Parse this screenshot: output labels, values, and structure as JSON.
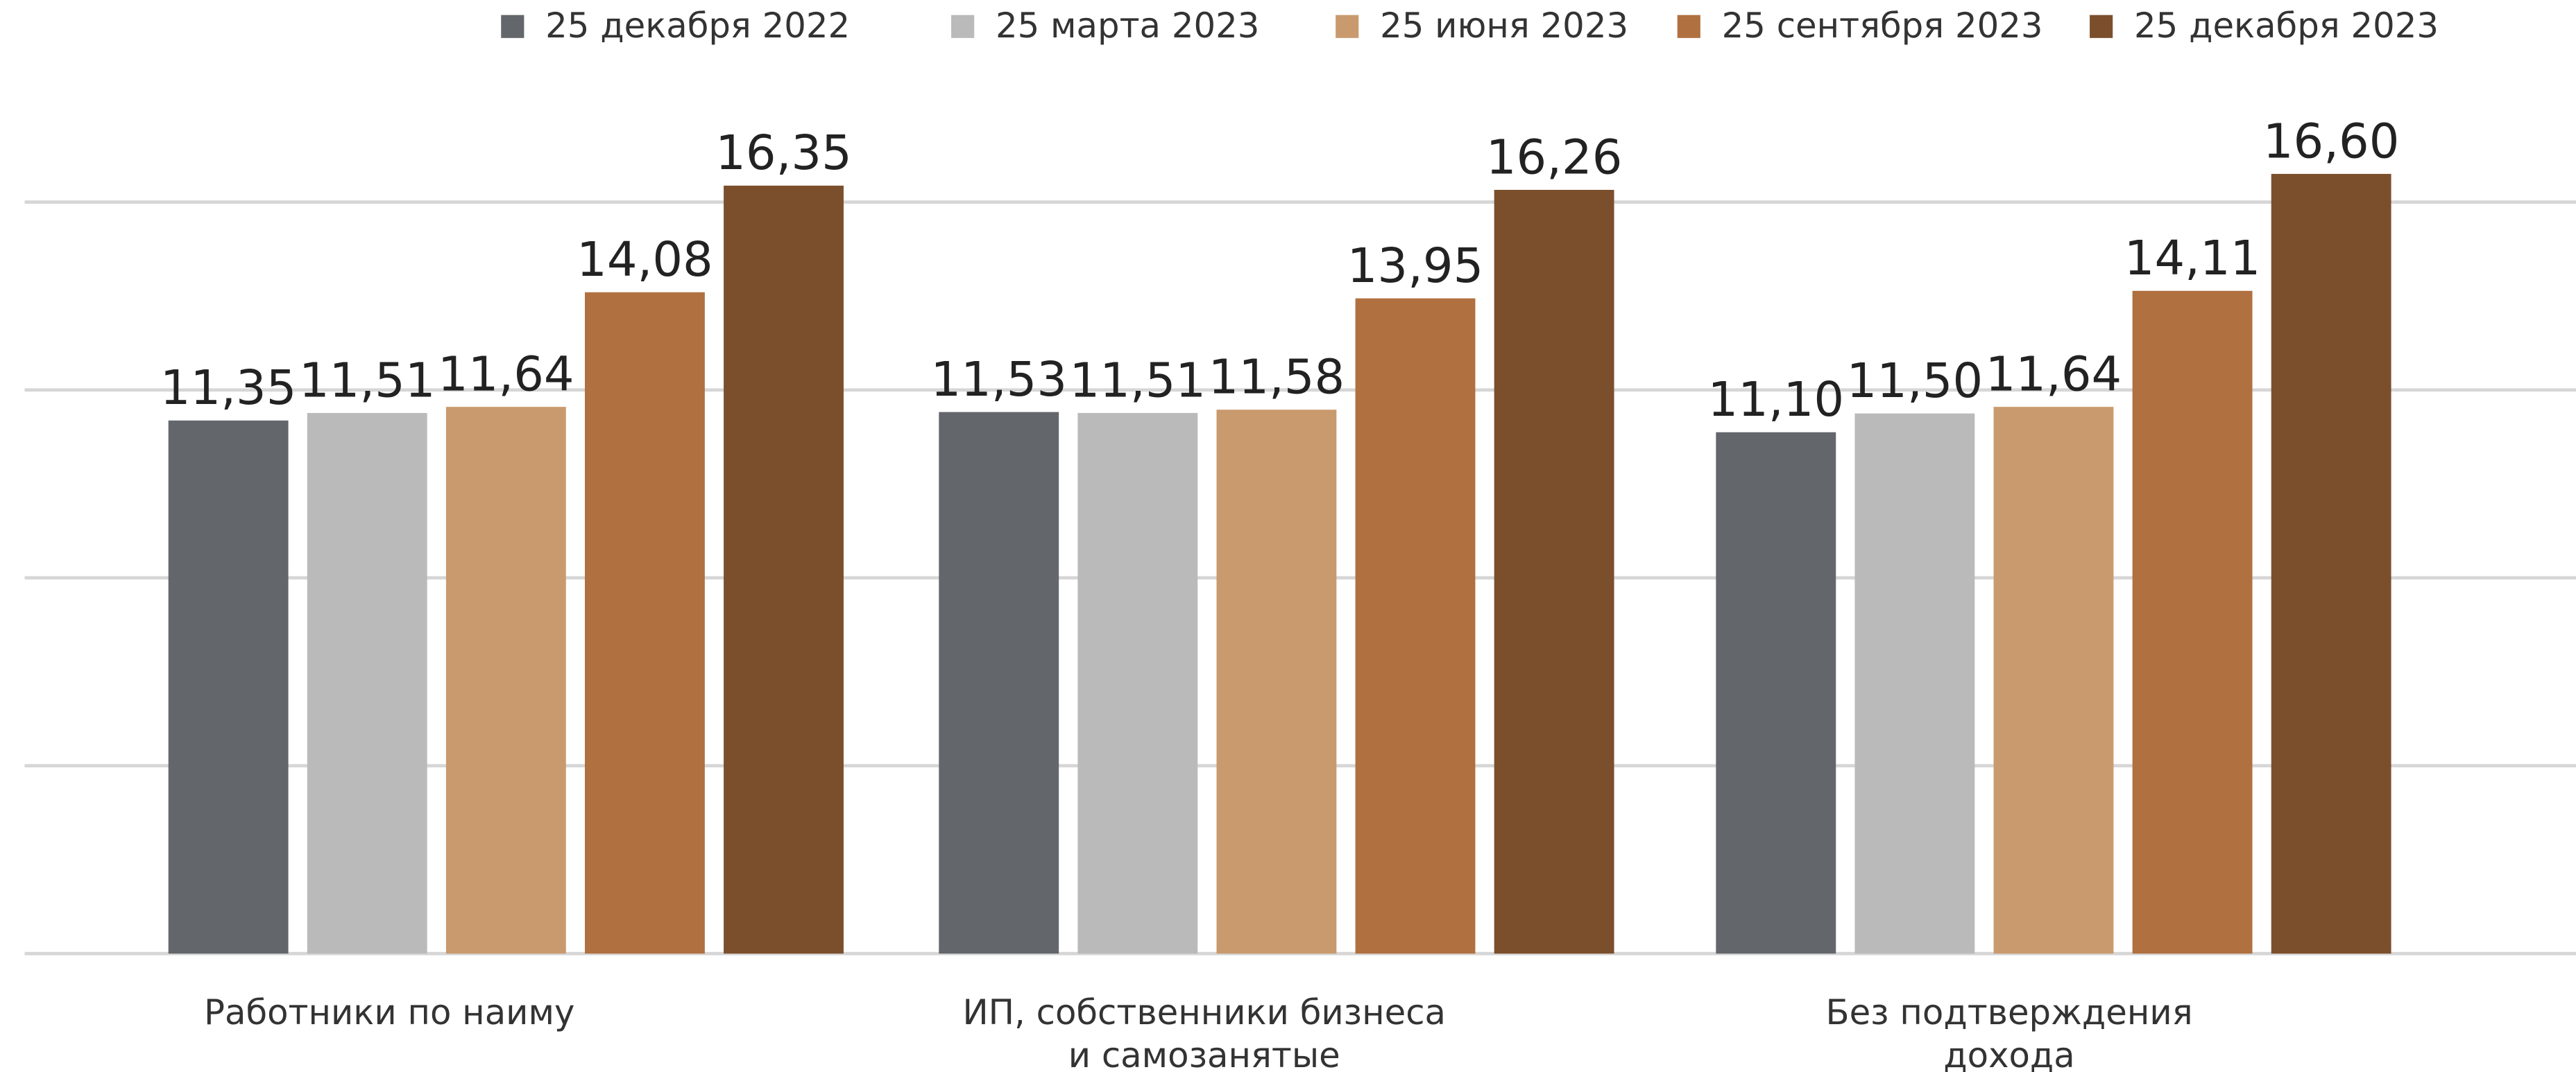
{
  "chart_data": {
    "type": "bar",
    "categories": [
      "Работники по наиму",
      "ИП, собственники бизнеса\nи самозанятые",
      "Без подтверждения\nдохода"
    ],
    "series": [
      {
        "name": "25 декабря 2022",
        "color": "#63666a",
        "values": [
          11.35,
          11.53,
          11.1
        ],
        "value_labels": [
          "11,35",
          "11,53",
          "11,10"
        ]
      },
      {
        "name": "25 марта 2023",
        "color": "#bababa",
        "values": [
          11.51,
          11.51,
          11.5
        ],
        "value_labels": [
          "11,51",
          "11,51",
          "11,50"
        ]
      },
      {
        "name": "25 июня 2023",
        "color": "#c99a6e",
        "values": [
          11.64,
          11.58,
          11.64
        ],
        "value_labels": [
          "11,64",
          "11,58",
          "11,64"
        ]
      },
      {
        "name": "25 сентября 2023",
        "color": "#b07040",
        "values": [
          14.08,
          13.95,
          14.11
        ],
        "value_labels": [
          "14,08",
          "13,95",
          "14,11"
        ]
      },
      {
        "name": "25 декабря 2023",
        "color": "#7b4f2c",
        "values": [
          16.35,
          16.26,
          16.6
        ],
        "value_labels": [
          "16,35",
          "16,26",
          "16,60"
        ]
      }
    ],
    "ylim": [
      0,
      16
    ],
    "yticks": [
      0,
      4,
      8,
      12,
      16
    ],
    "grid": true,
    "legend": "top"
  }
}
